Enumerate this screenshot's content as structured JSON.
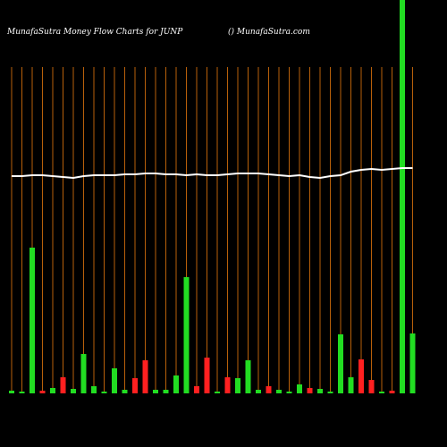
{
  "chart_data": {
    "type": "bar",
    "title": "MunafaSutra  Money Flow  Charts for JUNP",
    "subtitle": "() MunafaSutra.com",
    "ylim": [
      0,
      440
    ],
    "grid": true,
    "series": [
      {
        "name": "Money Flow",
        "values": [
          3,
          2,
          163,
          3,
          6,
          18,
          5,
          44,
          8,
          2,
          28,
          4,
          17,
          37,
          4,
          4,
          20,
          130,
          8,
          40,
          2,
          18,
          17,
          37,
          4,
          8,
          4,
          2,
          10,
          6,
          5,
          2,
          66,
          18,
          38,
          15,
          2,
          3,
          440,
          67
        ],
        "colors": [
          "#22dd22",
          "#22dd22",
          "#22dd22",
          "#ff2020",
          "#22dd22",
          "#ff2020",
          "#22dd22",
          "#22dd22",
          "#22dd22",
          "#22dd22",
          "#22dd22",
          "#22dd22",
          "#ff2020",
          "#ff2020",
          "#22dd22",
          "#22dd22",
          "#22dd22",
          "#22dd22",
          "#ff2020",
          "#ff2020",
          "#22dd22",
          "#ff2020",
          "#22dd22",
          "#22dd22",
          "#22dd22",
          "#ff2020",
          "#22dd22",
          "#22dd22",
          "#22dd22",
          "#ff2020",
          "#22dd22",
          "#22dd22",
          "#22dd22",
          "#22dd22",
          "#ff2020",
          "#ff2020",
          "#22dd22",
          "#ff2020",
          "#22dd22",
          "#22dd22"
        ]
      },
      {
        "name": "Trend",
        "color": "#ffffff",
        "values": [
          243,
          243,
          244,
          244,
          243,
          242,
          241,
          243,
          244,
          244,
          244,
          245,
          245,
          246,
          246,
          245,
          245,
          244,
          245,
          244,
          244,
          245,
          246,
          246,
          246,
          245,
          244,
          243,
          244,
          242,
          241,
          243,
          244,
          248,
          250,
          251,
          250,
          251,
          252,
          252
        ]
      }
    ]
  }
}
